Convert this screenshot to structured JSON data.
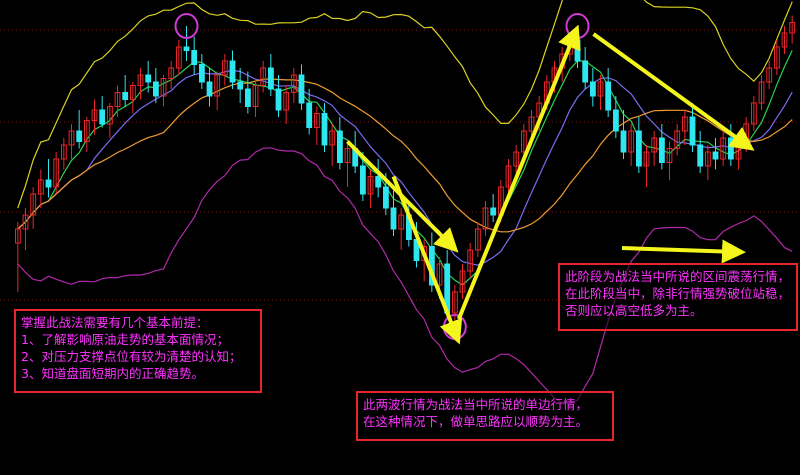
{
  "chart_data": {
    "type": "candlestick",
    "title": "",
    "xlabel": "",
    "ylabel": "",
    "grid": true,
    "ylim": [
      0,
      100
    ],
    "candles": [
      [
        34,
        40,
        20,
        38
      ],
      [
        38,
        44,
        32,
        42
      ],
      [
        42,
        50,
        38,
        48
      ],
      [
        48,
        55,
        44,
        52
      ],
      [
        52,
        58,
        47,
        50
      ],
      [
        50,
        60,
        48,
        58
      ],
      [
        58,
        64,
        55,
        62
      ],
      [
        62,
        68,
        58,
        66
      ],
      [
        66,
        72,
        61,
        63
      ],
      [
        63,
        70,
        60,
        69
      ],
      [
        69,
        75,
        65,
        72
      ],
      [
        72,
        76,
        67,
        68
      ],
      [
        68,
        74,
        64,
        73
      ],
      [
        73,
        79,
        70,
        77
      ],
      [
        77,
        82,
        73,
        75
      ],
      [
        75,
        80,
        71,
        79
      ],
      [
        79,
        84,
        75,
        82
      ],
      [
        82,
        86,
        77,
        80
      ],
      [
        80,
        84,
        74,
        76
      ],
      [
        76,
        82,
        73,
        81
      ],
      [
        81,
        86,
        78,
        84
      ],
      [
        84,
        92,
        82,
        90
      ],
      [
        90,
        96,
        86,
        89
      ],
      [
        89,
        93,
        82,
        85
      ],
      [
        85,
        88,
        78,
        80
      ],
      [
        80,
        84,
        73,
        76
      ],
      [
        76,
        83,
        72,
        82
      ],
      [
        82,
        88,
        79,
        86
      ],
      [
        86,
        89,
        78,
        80
      ],
      [
        80,
        84,
        74,
        78
      ],
      [
        78,
        83,
        71,
        73
      ],
      [
        73,
        80,
        70,
        79
      ],
      [
        79,
        86,
        77,
        84
      ],
      [
        84,
        88,
        76,
        78
      ],
      [
        78,
        82,
        70,
        72
      ],
      [
        72,
        79,
        68,
        77
      ],
      [
        77,
        84,
        74,
        82
      ],
      [
        82,
        85,
        72,
        74
      ],
      [
        74,
        78,
        65,
        67
      ],
      [
        67,
        73,
        62,
        71
      ],
      [
        71,
        74,
        60,
        62
      ],
      [
        62,
        68,
        56,
        66
      ],
      [
        66,
        70,
        55,
        57
      ],
      [
        57,
        63,
        50,
        61
      ],
      [
        61,
        66,
        54,
        56
      ],
      [
        56,
        60,
        46,
        48
      ],
      [
        48,
        55,
        44,
        53
      ],
      [
        53,
        58,
        47,
        50
      ],
      [
        50,
        54,
        42,
        44
      ],
      [
        44,
        49,
        36,
        38
      ],
      [
        38,
        44,
        32,
        42
      ],
      [
        42,
        46,
        33,
        35
      ],
      [
        35,
        40,
        27,
        29
      ],
      [
        29,
        35,
        23,
        33
      ],
      [
        33,
        37,
        20,
        22
      ],
      [
        22,
        30,
        18,
        28
      ],
      [
        28,
        32,
        12,
        14
      ],
      [
        14,
        22,
        10,
        20
      ],
      [
        20,
        28,
        18,
        26
      ],
      [
        26,
        34,
        24,
        32
      ],
      [
        32,
        40,
        30,
        38
      ],
      [
        38,
        46,
        36,
        44
      ],
      [
        44,
        48,
        40,
        42
      ],
      [
        42,
        52,
        40,
        50
      ],
      [
        50,
        58,
        48,
        56
      ],
      [
        56,
        62,
        53,
        60
      ],
      [
        60,
        68,
        58,
        66
      ],
      [
        66,
        72,
        62,
        70
      ],
      [
        70,
        76,
        66,
        74
      ],
      [
        74,
        82,
        72,
        80
      ],
      [
        80,
        86,
        77,
        84
      ],
      [
        84,
        90,
        80,
        88
      ],
      [
        88,
        94,
        86,
        92
      ],
      [
        92,
        96,
        84,
        86
      ],
      [
        86,
        90,
        78,
        80
      ],
      [
        80,
        84,
        73,
        76
      ],
      [
        76,
        82,
        72,
        80
      ],
      [
        80,
        84,
        70,
        72
      ],
      [
        72,
        76,
        64,
        66
      ],
      [
        66,
        72,
        58,
        60
      ],
      [
        60,
        68,
        56,
        66
      ],
      [
        66,
        70,
        54,
        56
      ],
      [
        56,
        62,
        50,
        60
      ],
      [
        60,
        66,
        56,
        64
      ],
      [
        64,
        68,
        55,
        57
      ],
      [
        57,
        63,
        52,
        61
      ],
      [
        61,
        68,
        59,
        66
      ],
      [
        66,
        72,
        62,
        70
      ],
      [
        70,
        74,
        60,
        62
      ],
      [
        62,
        66,
        54,
        56
      ],
      [
        56,
        62,
        52,
        60
      ],
      [
        60,
        64,
        55,
        58
      ],
      [
        58,
        66,
        56,
        64
      ],
      [
        64,
        68,
        56,
        58
      ],
      [
        58,
        64,
        55,
        62
      ],
      [
        62,
        70,
        60,
        68
      ],
      [
        68,
        76,
        66,
        74
      ],
      [
        74,
        82,
        72,
        80
      ],
      [
        80,
        86,
        78,
        84
      ],
      [
        84,
        92,
        82,
        90
      ],
      [
        90,
        96,
        88,
        94
      ],
      [
        94,
        99,
        91,
        97
      ]
    ],
    "annotations": [
      "掌握此战法需要有几个基本前提：\n1、了解影响原油走势的基本面情况；\n2、对压力支撑点位有较为清楚的认知；\n3、知道盘面短期内的正确趋势。",
      "此两波行情为战法当中所说的单边行情，\n在这种情况下，做单思路应以顺势为主。",
      "此阶段为战法当中所说的区间震荡行情，在此阶段当中，除非行情强势破位站稳，否则应以高空低多为主。"
    ],
    "colors": {
      "up": "#e8262a",
      "down": "#2ee6f0",
      "upper_band": "#d7d323",
      "lower_band": "#b02aa8",
      "ma_short": "#2bd152",
      "ma_mid": "#7a6cf2",
      "ma_long": "#ef9c32",
      "arrow": "#f5f51e",
      "circle": "#d03ad6"
    }
  }
}
